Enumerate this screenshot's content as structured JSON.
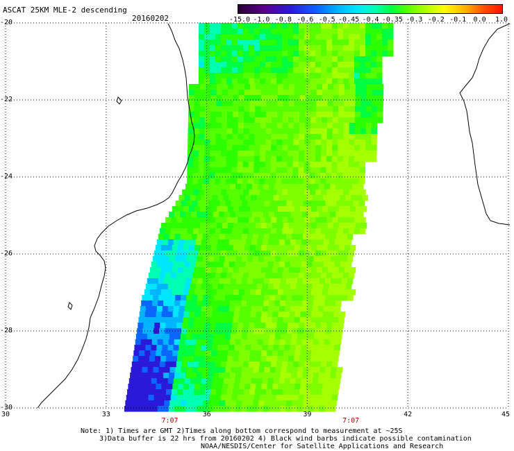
{
  "header": {
    "title": "ASCAT 25KM MLE-2 descending",
    "date": "20160202"
  },
  "colorbar": {
    "labels": [
      "-15.0",
      "-1.0",
      "-0.8",
      "-0.6",
      "-0.5",
      "-0.45",
      "-0.4",
      "-0.35",
      "-0.3",
      "-0.2",
      "-0.1",
      "0.0",
      "1.0"
    ]
  },
  "axes": {
    "lat_labels": [
      "-20",
      "-22",
      "-24",
      "-26",
      "-28",
      "-30"
    ],
    "lat_values": [
      -20,
      -22,
      -24,
      -26,
      -28,
      -30
    ],
    "lon_labels": [
      "30",
      "33",
      "36",
      "39",
      "42",
      "45"
    ],
    "lon_values": [
      30,
      33,
      36,
      39,
      42,
      45
    ],
    "lat_range": [
      -30,
      -20
    ],
    "lon_range": [
      30,
      45
    ],
    "grid": "dotted"
  },
  "times": [
    {
      "label": "7:07",
      "lon": 34.9
    },
    {
      "label": "7:07",
      "lon": 40.3
    }
  ],
  "notes": {
    "line1": "Note: 1) Times are GMT 2)Times along bottom correspond to measurement at ~25S",
    "line2": "3)Data buffer is 22 hrs from 20160202 4) Black wind barbs indicate possible contamination",
    "line3": "NOAA/NESDIS/Center for Satellite Applications and Research"
  },
  "colors": {
    "land_outline": "#000000",
    "swath_base": "#66ff00"
  }
}
